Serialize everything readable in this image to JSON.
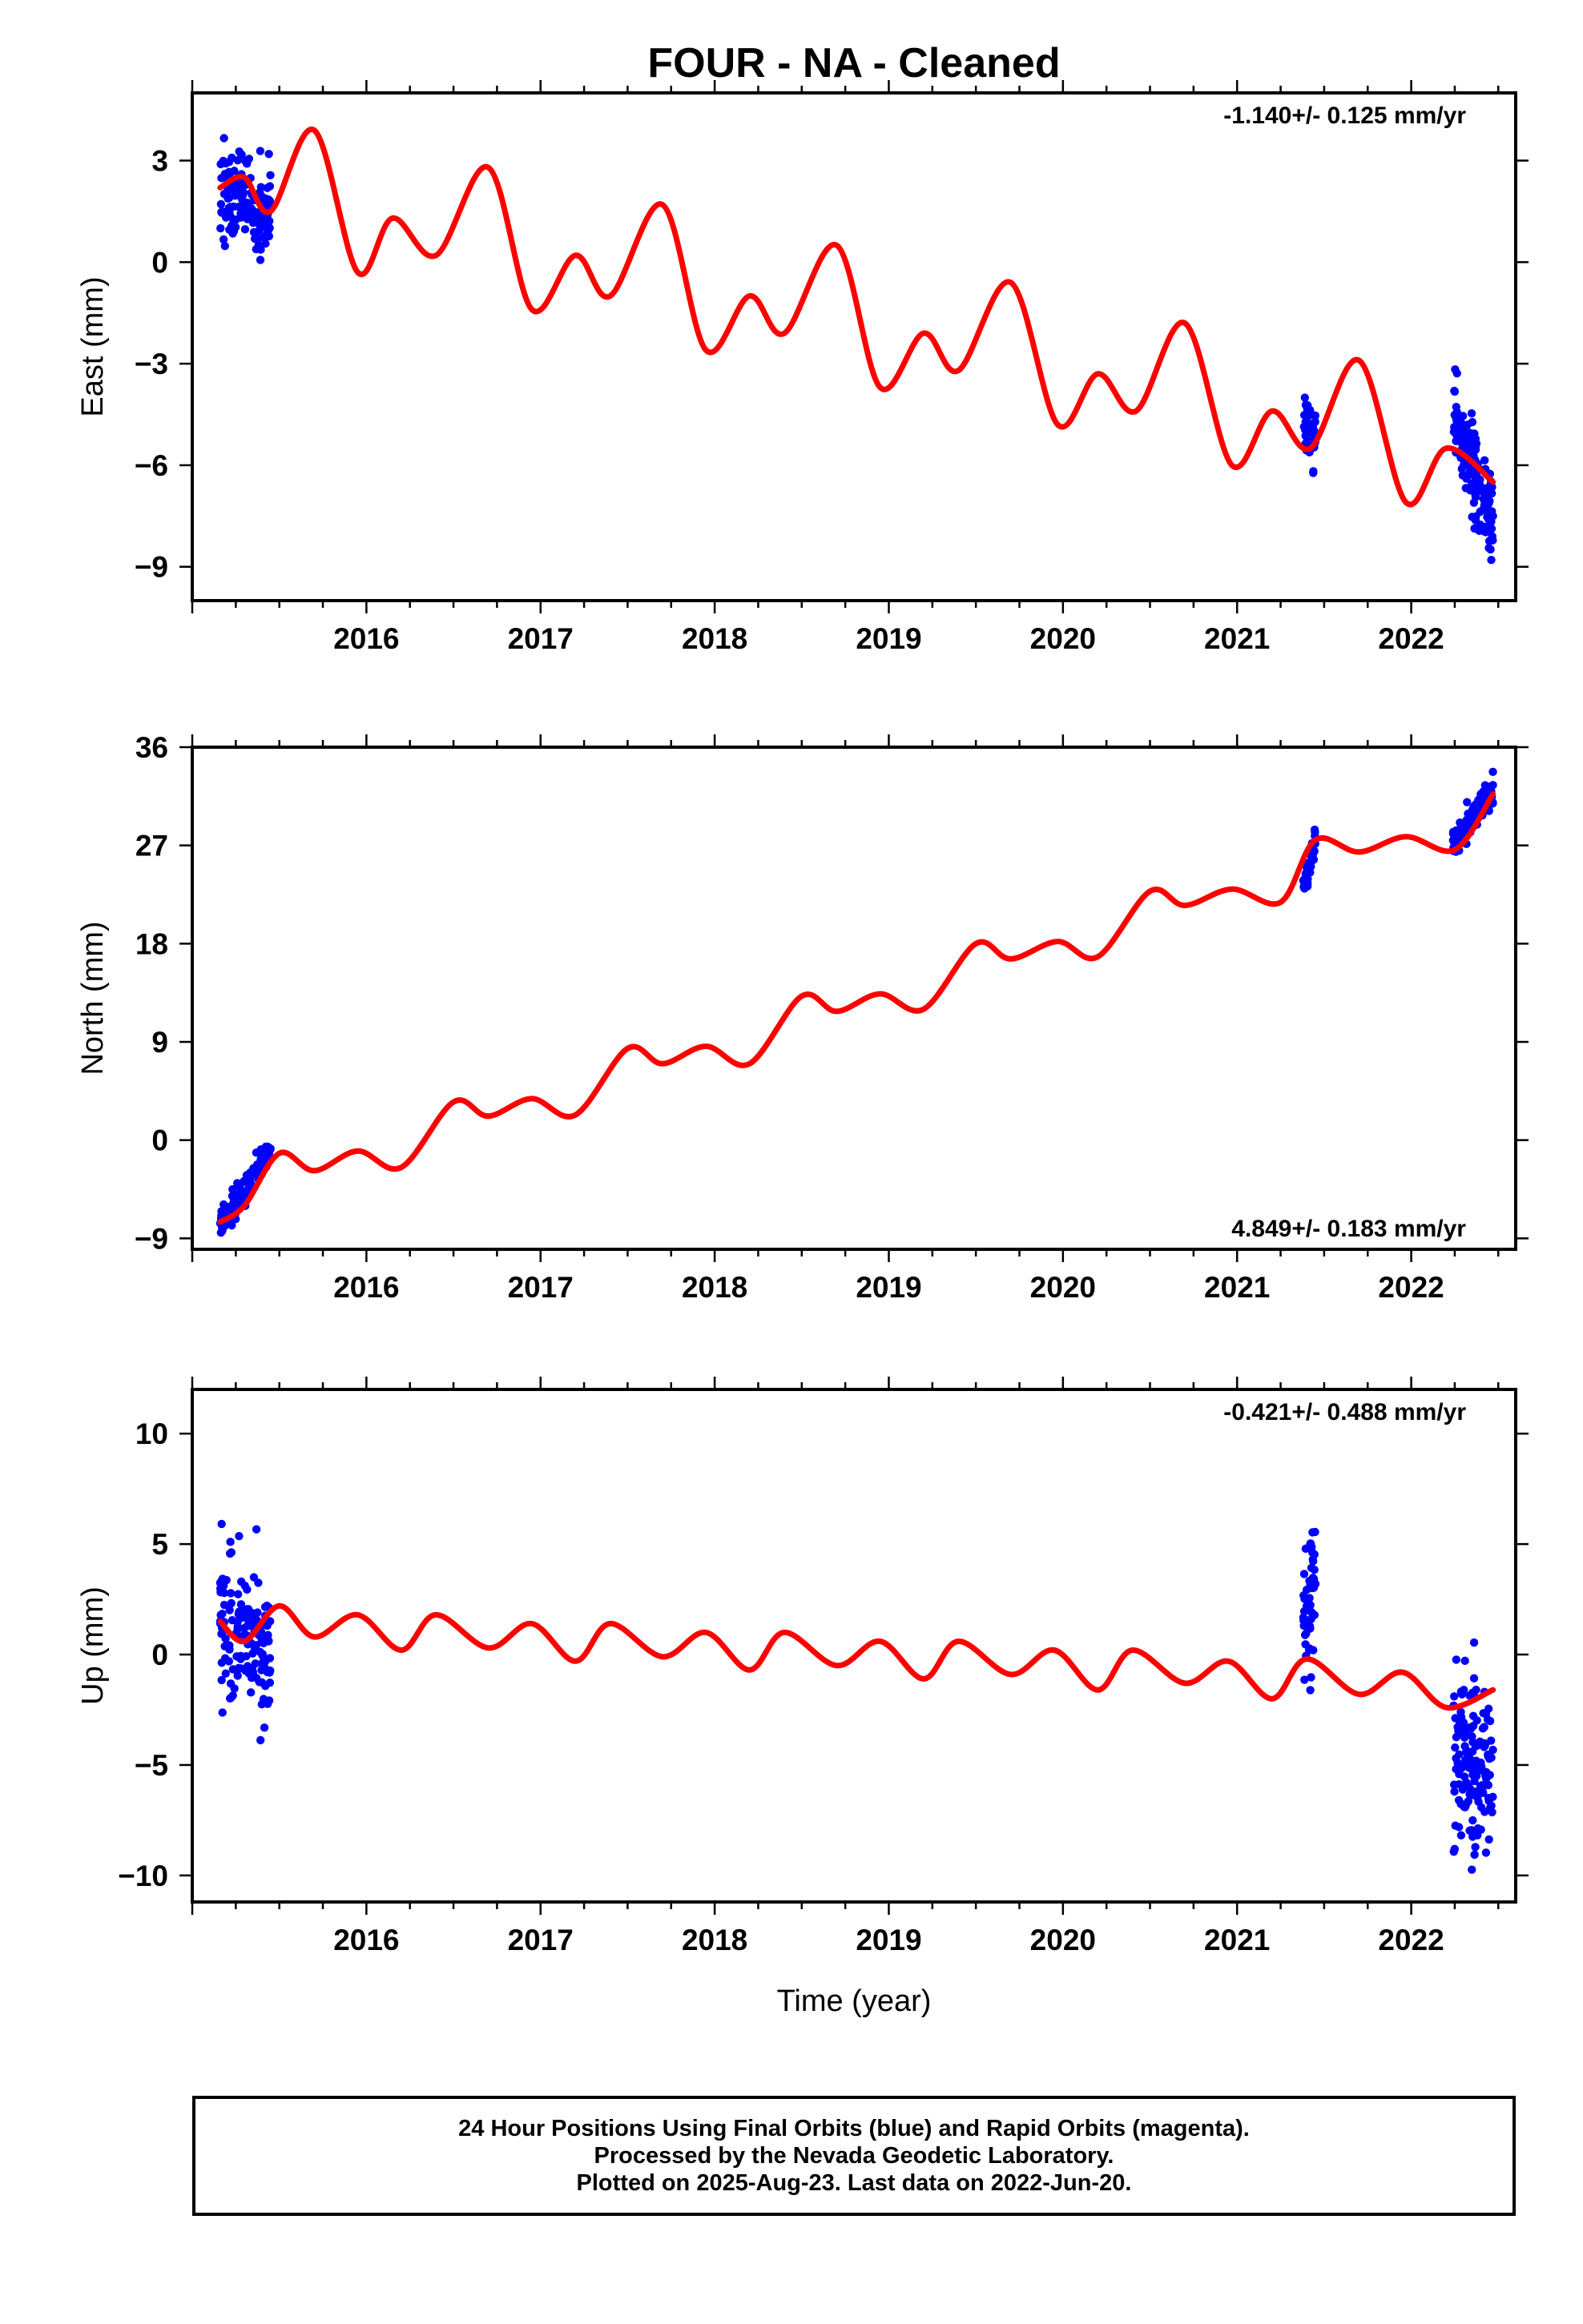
{
  "title": "FOUR  - NA - Cleaned",
  "xlabel": "Time (year)",
  "colors": {
    "final_orbits": "#0000ff",
    "rapid_orbits": "#ff00ff",
    "model": "#ff0000",
    "axis": "#000000"
  },
  "chart_data": [
    {
      "type": "scatter",
      "id": "east",
      "ylabel": "East (mm)",
      "rate_label": "-1.140+/- 0.125 mm/yr",
      "rate_position": "top-right",
      "xlim": [
        2015.0,
        2022.6
      ],
      "ylim": [
        -10,
        5
      ],
      "xticks": [
        2016,
        2017,
        2018,
        2019,
        2020,
        2021,
        2022
      ],
      "yticks": [
        3,
        0,
        -3,
        -6,
        -9
      ],
      "ytick_labels": [
        "3",
        "0",
        "−3",
        "−6",
        "−9"
      ],
      "grid": false,
      "data_segments": [
        {
          "start": 2015.16,
          "end": 2015.45,
          "count": 150,
          "mean": [
            2.2,
            1.4
          ],
          "spread": 1.1
        },
        {
          "start": 2021.38,
          "end": 2021.45,
          "count": 50,
          "mean": [
            -4.6,
            -5.3
          ],
          "spread": 0.8
        },
        {
          "start": 2022.24,
          "end": 2022.47,
          "count": 160,
          "mean": [
            -4.6,
            -7.8
          ],
          "spread": 1.0
        }
      ],
      "model": {
        "x": [
          2015.16,
          2015.3,
          2015.45,
          2015.7,
          2015.95,
          2016.15,
          2016.4,
          2016.7,
          2016.95,
          2017.2,
          2017.4,
          2017.7,
          2017.95,
          2018.2,
          2018.4,
          2018.7,
          2018.95,
          2019.2,
          2019.4,
          2019.7,
          2019.97,
          2020.2,
          2020.42,
          2020.7,
          2020.97,
          2021.2,
          2021.42,
          2021.7,
          2021.97,
          2022.2,
          2022.47
        ],
        "y": [
          2.2,
          2.5,
          1.5,
          3.9,
          -0.3,
          1.3,
          0.2,
          2.8,
          -1.4,
          0.2,
          -1.0,
          1.7,
          -2.6,
          -1.0,
          -2.1,
          0.5,
          -3.7,
          -2.1,
          -3.2,
          -0.6,
          -4.8,
          -3.3,
          -4.4,
          -1.8,
          -6.0,
          -4.4,
          -5.5,
          -2.9,
          -7.1,
          -5.5,
          -6.5
        ]
      }
    },
    {
      "type": "scatter",
      "id": "north",
      "ylabel": "North (mm)",
      "rate_label": "4.849+/- 0.183 mm/yr",
      "rate_position": "bottom-right",
      "xlim": [
        2015.0,
        2022.6
      ],
      "ylim": [
        -10,
        36
      ],
      "xticks": [
        2016,
        2017,
        2018,
        2019,
        2020,
        2021,
        2022
      ],
      "yticks": [
        36,
        27,
        18,
        9,
        0,
        -9
      ],
      "ytick_labels": [
        "36",
        "27",
        "18",
        "9",
        "0",
        "−9"
      ],
      "grid": false,
      "data_segments": [
        {
          "start": 2015.16,
          "end": 2015.45,
          "count": 150,
          "mean": [
            -7.8,
            -1.0
          ],
          "spread": 1.0
        },
        {
          "start": 2021.38,
          "end": 2021.45,
          "count": 45,
          "mean": [
            23.0,
            27.5
          ],
          "spread": 0.9
        },
        {
          "start": 2022.24,
          "end": 2022.47,
          "count": 150,
          "mean": [
            27.0,
            32.0
          ],
          "spread": 1.0
        }
      ],
      "model": {
        "x": [
          2015.16,
          2015.3,
          2015.5,
          2015.7,
          2015.95,
          2016.2,
          2016.5,
          2016.7,
          2016.95,
          2017.2,
          2017.5,
          2017.7,
          2017.95,
          2018.2,
          2018.5,
          2018.7,
          2018.95,
          2019.2,
          2019.5,
          2019.7,
          2019.97,
          2020.2,
          2020.5,
          2020.7,
          2020.97,
          2021.25,
          2021.45,
          2021.7,
          2021.97,
          2022.25,
          2022.47
        ],
        "y": [
          -7.5,
          -6.0,
          -1.2,
          -2.8,
          -1.0,
          -2.5,
          3.5,
          2.2,
          3.8,
          2.3,
          8.4,
          7.0,
          8.6,
          7.0,
          13.2,
          11.8,
          13.4,
          12.0,
          18.0,
          16.6,
          18.2,
          16.8,
          22.8,
          21.5,
          23.0,
          21.8,
          27.5,
          26.4,
          27.8,
          26.6,
          31.7
        ]
      }
    },
    {
      "type": "scatter",
      "id": "up",
      "ylabel": "Up (mm)",
      "rate_label": "-0.421+/- 0.488 mm/yr",
      "rate_position": "top-right",
      "xlim": [
        2015.0,
        2022.6
      ],
      "ylim": [
        -11.2,
        12
      ],
      "xticks": [
        2016,
        2017,
        2018,
        2019,
        2020,
        2021,
        2022
      ],
      "yticks": [
        10,
        5,
        0,
        -5,
        -10
      ],
      "ytick_labels": [
        "10",
        "5",
        "0",
        "−5",
        "−10"
      ],
      "grid": false,
      "data_segments": [
        {
          "start": 2015.16,
          "end": 2015.45,
          "count": 150,
          "mean": [
            1.5,
            0.5
          ],
          "spread": 3.0
        },
        {
          "start": 2021.38,
          "end": 2021.45,
          "count": 50,
          "mean": [
            3.0,
            3.5
          ],
          "spread": 3.2
        },
        {
          "start": 2022.24,
          "end": 2022.47,
          "count": 150,
          "mean": [
            -5.0,
            -5.2
          ],
          "spread": 3.0
        }
      ],
      "model": {
        "x": [
          2015.16,
          2015.3,
          2015.5,
          2015.7,
          2015.95,
          2016.2,
          2016.4,
          2016.7,
          2016.95,
          2017.2,
          2017.4,
          2017.7,
          2017.95,
          2018.2,
          2018.4,
          2018.7,
          2018.95,
          2019.2,
          2019.4,
          2019.7,
          2019.95,
          2020.2,
          2020.4,
          2020.7,
          2020.95,
          2021.2,
          2021.4,
          2021.7,
          2021.95,
          2022.2,
          2022.47
        ],
        "y": [
          1.5,
          0.6,
          2.2,
          0.8,
          1.8,
          0.2,
          1.8,
          0.3,
          1.4,
          -0.3,
          1.4,
          -0.1,
          1.0,
          -0.7,
          1.0,
          -0.5,
          0.6,
          -1.1,
          0.6,
          -0.9,
          0.2,
          -1.6,
          0.2,
          -1.3,
          -0.3,
          -2.0,
          -0.2,
          -1.8,
          -0.8,
          -2.4,
          -1.6
        ]
      }
    }
  ],
  "caption": {
    "line1": "24 Hour Positions Using Final Orbits (blue) and Rapid Orbits (magenta).",
    "line2": "Processed by the Nevada Geodetic Laboratory.",
    "line3": "Plotted on 2025-Aug-23. Last data on 2022-Jun-20."
  }
}
